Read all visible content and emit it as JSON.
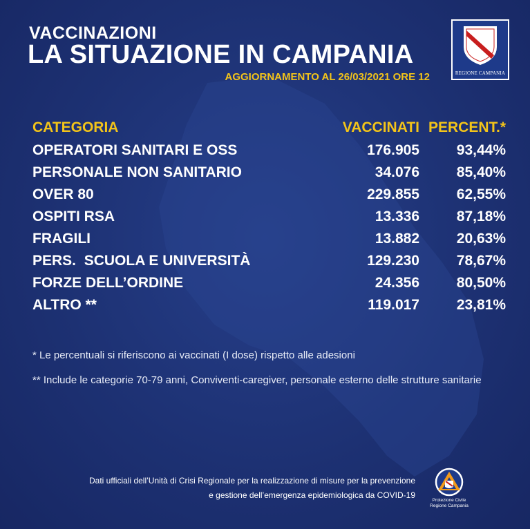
{
  "header": {
    "kicker": "VACCINAZIONI",
    "title": "LA SITUAZIONE IN CAMPANIA",
    "update": "AGGIORNAMENTO AL 26/03/2021 ORE 12"
  },
  "logo": {
    "label": "REGIONE CAMPANIA",
    "icon": "regione-campania-coat-of-arms"
  },
  "table": {
    "headers": {
      "category": "CATEGORIA",
      "vaccinated": "VACCINATI",
      "percent": "PERCENT.*"
    },
    "rows": [
      {
        "category": "OPERATORI SANITARI E OSS",
        "vaccinated": "176.905",
        "percent": "93,44%"
      },
      {
        "category": "PERSONALE NON SANITARIO",
        "vaccinated": "34.076",
        "percent": "85,40%"
      },
      {
        "category": "OVER 80",
        "vaccinated": "229.855",
        "percent": "62,55%"
      },
      {
        "category": "OSPITI RSA",
        "vaccinated": "13.336",
        "percent": "87,18%"
      },
      {
        "category": "FRAGILI",
        "vaccinated": "13.882",
        "percent": "20,63%"
      },
      {
        "category": "PERS.  SCUOLA E UNIVERSITÀ",
        "vaccinated": "129.230",
        "percent": "78,67%"
      },
      {
        "category": "FORZE DELL’ORDINE",
        "vaccinated": "24.356",
        "percent": "80,50%"
      },
      {
        "category": "ALTRO **",
        "vaccinated": "119.017",
        "percent": "23,81%"
      }
    ]
  },
  "notes": {
    "note1": "* Le percentuali si riferiscono ai vaccinati (I dose) rispetto alle adesioni",
    "note2": "** Include le categorie 70-79 anni, Conviventi-caregiver, personale esterno delle strutture sanitarie"
  },
  "footer": {
    "line1": "Dati ufficiali dell’Unità di Crisi Regionale per la realizzazione di misure per la  prevenzione",
    "line2": "e gestione dell’emergenza epidemiologica da COVID-19"
  },
  "civil_protection": {
    "label_line1": "Protezione Civile",
    "label_line2": "Regione Campania",
    "icon": "protezione-civile-logo"
  },
  "colors": {
    "background": "#1d3173",
    "accent": "#f3c419",
    "text": "#ffffff"
  }
}
